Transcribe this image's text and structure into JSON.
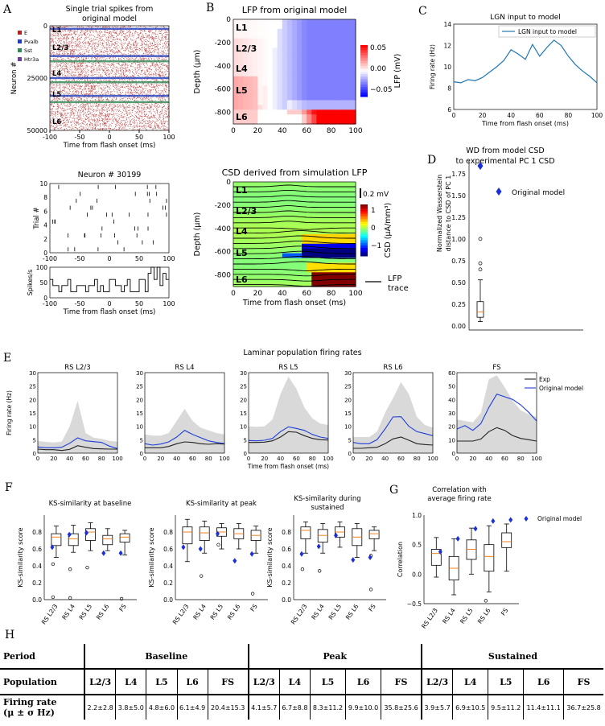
{
  "panel_labels": {
    "a": "A",
    "b": "B",
    "c": "C",
    "d": "D",
    "e": "E",
    "f": "F",
    "g": "G",
    "h": "H"
  },
  "chart_data": [
    {
      "id": "A-raster",
      "type": "scatter",
      "title": "Single trial spikes from original model",
      "xlabel": "Time from flash onset (ms)",
      "ylabel": "Neuron #",
      "xlim": [
        -100,
        100
      ],
      "ylim": [
        0,
        50000
      ],
      "xticks": [
        -100,
        -50,
        0,
        50,
        100
      ],
      "yticks": [
        "0",
        "25000",
        "50000"
      ],
      "layers": [
        "L1",
        "L2/3",
        "L4",
        "L5",
        "L6"
      ],
      "legend": [
        {
          "name": "E",
          "color": "#b22222"
        },
        {
          "name": "Pvalb",
          "color": "#1f3fbf"
        },
        {
          "name": "Sst",
          "color": "#2e8b57"
        },
        {
          "name": "Htr3a",
          "color": "#6a3d9a"
        }
      ]
    },
    {
      "id": "A-neuron",
      "type": "scatter",
      "title": "Neuron # 30199",
      "xlabel": "Time from flash onset (ms)",
      "ylabel": "Trial #",
      "xlim": [
        -100,
        100
      ],
      "ylim": [
        0,
        10
      ],
      "xticks": [
        -100,
        -50,
        0,
        50,
        100
      ],
      "yticks": [
        0,
        2,
        4,
        6,
        8,
        10
      ]
    },
    {
      "id": "A-psth",
      "type": "line",
      "xlabel": "Time from flash onset (ms)",
      "ylabel": "Spikes/s",
      "ylim": [
        0,
        100
      ],
      "yticks": [
        0,
        50,
        100
      ],
      "xticks": [
        -100,
        -50,
        0,
        50,
        100
      ],
      "x": [
        -100,
        -95,
        -90,
        -85,
        -80,
        -75,
        -70,
        -65,
        -60,
        -55,
        -50,
        -45,
        -40,
        -35,
        -30,
        -25,
        -20,
        -15,
        -10,
        -5,
        0,
        5,
        10,
        15,
        20,
        25,
        30,
        35,
        40,
        45,
        50,
        55,
        60,
        65,
        70,
        75,
        80,
        85,
        90,
        95
      ],
      "values": [
        60,
        40,
        40,
        20,
        40,
        40,
        60,
        20,
        20,
        40,
        40,
        40,
        20,
        40,
        40,
        60,
        20,
        40,
        20,
        20,
        60,
        60,
        40,
        40,
        20,
        40,
        60,
        20,
        20,
        20,
        60,
        60,
        20,
        80,
        100,
        60,
        100,
        40,
        80,
        60
      ]
    },
    {
      "id": "B-lfp",
      "type": "heatmap",
      "title": "LFP from original model",
      "xlabel": "",
      "ylabel": "Depth (μm)",
      "xlim": [
        0,
        100
      ],
      "ylim": [
        -900,
        0
      ],
      "xticks": [
        0,
        20,
        40,
        60,
        80,
        100
      ],
      "yticks": [
        -800,
        -600,
        -400,
        -200,
        0
      ],
      "layers": [
        "L1",
        "L2/3",
        "L4",
        "L5",
        "L6"
      ],
      "colorbar_label": "LFP (mV)",
      "colorbar_ticks": [
        "0.05",
        "0.00",
        "−0.05"
      ]
    },
    {
      "id": "B-csd",
      "type": "heatmap",
      "title": "CSD derived from simulation LFP",
      "xlabel": "Time from flash onset (ms)",
      "ylabel": "Depth (μm)",
      "xlim": [
        0,
        100
      ],
      "ylim": [
        -900,
        0
      ],
      "xticks": [
        0,
        20,
        40,
        60,
        80,
        100
      ],
      "yticks": [
        -800,
        -600,
        -400,
        -200,
        0
      ],
      "layers": [
        "L1",
        "L2/3",
        "L4",
        "L5",
        "L6"
      ],
      "colorbar_label": "CSD (μA/mm³)",
      "colorbar_ticks": [
        "1",
        "0",
        "−1"
      ],
      "scale_label": "0.2 mV",
      "legend": [
        "LFP trace"
      ]
    },
    {
      "id": "C",
      "type": "line",
      "title": "LGN input to model",
      "xlabel": "Time from flash onset (ms)",
      "ylabel": "Firing rate (Hz)",
      "xlim": [
        0,
        100
      ],
      "ylim": [
        6,
        14
      ],
      "xticks": [
        0,
        20,
        40,
        60,
        80,
        100
      ],
      "yticks": [
        6,
        8,
        10,
        12,
        14
      ],
      "series": [
        {
          "name": "LGN input to model",
          "color": "#1f77b4",
          "x": [
            0,
            5,
            10,
            15,
            20,
            25,
            30,
            35,
            40,
            45,
            50,
            55,
            60,
            65,
            70,
            75,
            80,
            85,
            90,
            95,
            100
          ],
          "values": [
            8.6,
            8.5,
            8.8,
            8.7,
            9.0,
            9.5,
            10.0,
            10.6,
            11.6,
            11.2,
            10.7,
            12.1,
            11.0,
            11.8,
            12.5,
            12.0,
            11.0,
            10.2,
            9.6,
            9.1,
            8.5
          ]
        }
      ]
    },
    {
      "id": "D",
      "type": "box",
      "title": "WD from model CSD to experimental PC 1 CSD",
      "ylabel": "Normalized Wasserstein distance to CSD of PC 1",
      "ylim": [
        0,
        1.85
      ],
      "yticks": [
        "0.00",
        "0.25",
        "0.50",
        "0.75",
        "1.00",
        "1.25",
        "1.50",
        "1.75"
      ],
      "box": {
        "whislo": 0.05,
        "q1": 0.1,
        "med": 0.16,
        "q3": 0.28,
        "whishi": 0.53,
        "fliers": [
          0.65,
          0.72,
          1.0
        ]
      },
      "model_value": 1.84,
      "legend": [
        "Original model"
      ]
    },
    {
      "id": "E",
      "type": "line",
      "title": "Laminar population firing rates",
      "xlabel": "Time from flash onset (ms)",
      "ylabel": "Firing rate (Hz)",
      "ylim": [
        0,
        30
      ],
      "yticks": [
        0,
        5,
        10,
        15,
        20,
        25,
        30
      ],
      "xticks": [
        0,
        20,
        40,
        60,
        80,
        100
      ],
      "legend": [
        {
          "name": "Exp",
          "color": "#222222"
        },
        {
          "name": "Original model",
          "color": "#1f3fd6"
        }
      ],
      "x": [
        0,
        10,
        20,
        30,
        40,
        50,
        60,
        70,
        80,
        90,
        100
      ],
      "panels": [
        {
          "name": "RS L2/3",
          "exp": [
            1.5,
            1.3,
            1.3,
            1.0,
            1.4,
            2.8,
            2.2,
            1.7,
            1.6,
            1.5,
            1.5
          ],
          "model": [
            2.3,
            2.0,
            2.0,
            2.2,
            3.7,
            5.7,
            4.6,
            4.3,
            4.0,
            2.6,
            1.7
          ],
          "band": [
            4.5,
            4.2,
            4.0,
            4.3,
            10.0,
            19.5,
            7.5,
            5.8,
            5.3,
            4.6,
            4.3
          ]
        },
        {
          "name": "RS L4",
          "exp": [
            2.0,
            2.0,
            2.0,
            2.5,
            3.5,
            4.2,
            4.0,
            3.5,
            3.3,
            3.5,
            3.4
          ],
          "model": [
            3.5,
            3.0,
            3.4,
            4.2,
            6.0,
            8.5,
            7.0,
            5.8,
            4.6,
            4.0,
            3.6
          ],
          "band": [
            7.0,
            6.5,
            6.5,
            7.5,
            12.0,
            16.5,
            12.0,
            9.5,
            8.5,
            7.5,
            7.0
          ]
        },
        {
          "name": "RS L5",
          "exp": [
            4.0,
            4.0,
            4.1,
            4.6,
            6.0,
            8.0,
            7.8,
            6.5,
            5.5,
            5.0,
            4.9
          ],
          "model": [
            4.7,
            4.6,
            4.8,
            5.5,
            8.0,
            9.8,
            9.2,
            8.5,
            7.0,
            6.0,
            5.5
          ],
          "band": [
            10.0,
            9.8,
            10.0,
            12.5,
            22.0,
            28.5,
            24.0,
            17.0,
            13.0,
            11.0,
            10.5
          ],
          "xlabel_here": true
        },
        {
          "name": "RS L6",
          "exp": [
            1.8,
            1.8,
            2.0,
            2.2,
            3.5,
            5.3,
            6.0,
            4.8,
            3.5,
            3.2,
            3.0
          ],
          "model": [
            4.0,
            3.5,
            3.5,
            5.0,
            9.0,
            13.5,
            13.6,
            10.0,
            8.0,
            7.3,
            6.5
          ],
          "band": [
            6.0,
            6.0,
            6.0,
            8.0,
            15.0,
            20.5,
            26.5,
            22.0,
            13.5,
            10.5,
            9.5
          ]
        },
        {
          "name": "FS",
          "exp": [
            9.0,
            9.0,
            9.0,
            10.5,
            16.0,
            19.0,
            17.0,
            13.0,
            11.0,
            10.0,
            9.0
          ],
          "model": [
            18.0,
            20.5,
            17.0,
            22.0,
            34.0,
            44.0,
            42.0,
            40.0,
            36.0,
            30.5,
            24.0
          ],
          "band": [
            25.0,
            24.0,
            23.0,
            30.0,
            55.0,
            58.0,
            49.0,
            39.0,
            32.0,
            29.0,
            27.0
          ],
          "ylim": [
            0,
            60
          ],
          "yticks": [
            0,
            10,
            20,
            30,
            40,
            50,
            60
          ]
        }
      ]
    },
    {
      "id": "F1",
      "type": "box",
      "title": "KS-similarity at baseline",
      "ylabel": "KS-similarity score",
      "categories": [
        "RS L2/3",
        "RS L4",
        "RS L5",
        "RS L6",
        "FS"
      ],
      "ylim": [
        0,
        1
      ],
      "yticks": [
        "0.0",
        "0.2",
        "0.4",
        "0.6",
        "0.8"
      ],
      "boxes": [
        {
          "whislo": 0.5,
          "q1": 0.64,
          "med": 0.74,
          "q3": 0.78,
          "whishi": 0.87,
          "fliers": [
            0.42,
            0.03
          ]
        },
        {
          "whislo": 0.56,
          "q1": 0.64,
          "med": 0.72,
          "q3": 0.78,
          "whishi": 0.88,
          "fliers": [
            0.36,
            0.02
          ]
        },
        {
          "whislo": 0.58,
          "q1": 0.7,
          "med": 0.8,
          "q3": 0.84,
          "whishi": 0.91,
          "fliers": [
            0.38
          ]
        },
        {
          "whislo": 0.58,
          "q1": 0.65,
          "med": 0.72,
          "q3": 0.76,
          "whishi": 0.84,
          "fliers": []
        },
        {
          "whislo": 0.53,
          "q1": 0.68,
          "med": 0.74,
          "q3": 0.78,
          "whishi": 0.82,
          "fliers": [
            0.01
          ]
        }
      ],
      "model": [
        0.62,
        0.77,
        0.79,
        0.55,
        0.55
      ]
    },
    {
      "id": "F2",
      "type": "box",
      "title": "KS-similarity at peak",
      "ylabel": "KS-similarity score",
      "categories": [
        "RS L2/3",
        "RS L4",
        "RS L5",
        "RS L6",
        "FS"
      ],
      "ylim": [
        0,
        1
      ],
      "yticks": [
        "0.0",
        "0.2",
        "0.4",
        "0.6",
        "0.8"
      ],
      "boxes": [
        {
          "whislo": 0.45,
          "q1": 0.66,
          "med": 0.8,
          "q3": 0.86,
          "whishi": 0.95,
          "fliers": []
        },
        {
          "whislo": 0.55,
          "q1": 0.7,
          "med": 0.79,
          "q3": 0.86,
          "whishi": 0.93,
          "fliers": [
            0.28
          ]
        },
        {
          "whislo": 0.6,
          "q1": 0.75,
          "med": 0.8,
          "q3": 0.85,
          "whishi": 0.9,
          "fliers": [
            0.65
          ]
        },
        {
          "whislo": 0.6,
          "q1": 0.72,
          "med": 0.78,
          "q3": 0.84,
          "whishi": 0.9,
          "fliers": []
        },
        {
          "whislo": 0.55,
          "q1": 0.7,
          "med": 0.76,
          "q3": 0.82,
          "whishi": 0.87,
          "fliers": [
            0.07
          ]
        }
      ],
      "model": [
        0.62,
        0.6,
        0.78,
        0.46,
        0.54
      ]
    },
    {
      "id": "F3",
      "type": "box",
      "title": "KS-similarity during sustained",
      "ylabel": "KS-similarity score",
      "categories": [
        "RS L2/3",
        "RS L4",
        "RS L5",
        "RS L6",
        "FS"
      ],
      "ylim": [
        0,
        1
      ],
      "yticks": [
        "0.0",
        "0.2",
        "0.4",
        "0.6",
        "0.8"
      ],
      "boxes": [
        {
          "whislo": 0.55,
          "q1": 0.72,
          "med": 0.82,
          "q3": 0.86,
          "whishi": 0.92,
          "fliers": [
            0.36
          ]
        },
        {
          "whislo": 0.55,
          "q1": 0.68,
          "med": 0.76,
          "q3": 0.83,
          "whishi": 0.9,
          "fliers": [
            0.34
          ]
        },
        {
          "whislo": 0.62,
          "q1": 0.74,
          "med": 0.8,
          "q3": 0.86,
          "whishi": 0.92,
          "fliers": []
        },
        {
          "whislo": 0.5,
          "q1": 0.64,
          "med": 0.74,
          "q3": 0.84,
          "whishi": 0.9,
          "fliers": []
        },
        {
          "whislo": 0.58,
          "q1": 0.72,
          "med": 0.78,
          "q3": 0.82,
          "whishi": 0.86,
          "fliers": [
            0.52,
            0.12
          ]
        }
      ],
      "model": [
        0.54,
        0.63,
        0.76,
        0.47,
        0.5
      ]
    },
    {
      "id": "G",
      "type": "box",
      "title": "Correlation with average firing rate",
      "ylabel": "Correlation",
      "categories": [
        "RS L2/3",
        "RS L4",
        "RS L5",
        "RS L6",
        "FS"
      ],
      "ylim": [
        -0.5,
        1
      ],
      "yticks": [
        "−0.5",
        "0.0",
        "0.5",
        "1.0"
      ],
      "legend": [
        "Original model"
      ],
      "boxes": [
        {
          "whislo": -0.05,
          "q1": 0.15,
          "med": 0.35,
          "q3": 0.42,
          "whishi": 0.62,
          "fliers": []
        },
        {
          "whislo": -0.35,
          "q1": -0.1,
          "med": 0.1,
          "q3": 0.3,
          "whishi": 0.6,
          "fliers": []
        },
        {
          "whislo": 0.0,
          "q1": 0.25,
          "med": 0.42,
          "q3": 0.58,
          "whishi": 0.78,
          "fliers": []
        },
        {
          "whislo": -0.3,
          "q1": 0.05,
          "med": 0.3,
          "q3": 0.5,
          "whishi": 0.82,
          "fliers": [
            -0.45
          ]
        },
        {
          "whislo": 0.05,
          "q1": 0.45,
          "med": 0.55,
          "q3": 0.7,
          "whishi": 0.85,
          "fliers": []
        }
      ],
      "model": [
        0.38,
        0.6,
        0.77,
        0.9,
        0.92
      ]
    }
  ],
  "table": {
    "period_label": "Period",
    "population_label": "Population",
    "rate_label_1": "Firing rate",
    "rate_label_2": "(μ ± σ Hz)",
    "periods": [
      "Baseline",
      "Peak",
      "Sustained"
    ],
    "populations": [
      "L2/3",
      "L4",
      "L5",
      "L6",
      "FS",
      "L2/3",
      "L4",
      "L5",
      "L6",
      "FS",
      "L2/3",
      "L4",
      "L5",
      "L6",
      "FS"
    ],
    "values": [
      "2.2±2.8",
      "3.8±5.0",
      "4.8±6.0",
      "6.1±4.9",
      "20.4±15.3",
      "4.1±5.7",
      "6.7±8.8",
      "8.3±11.2",
      "9.9±10.0",
      "35.8±25.6",
      "3.9±5.7",
      "6.9±10.5",
      "9.5±11.2",
      "11.4±11.1",
      "36.7±25.8"
    ]
  }
}
